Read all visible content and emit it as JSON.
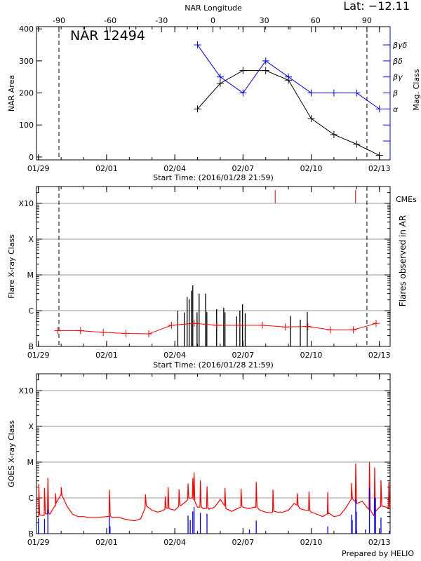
{
  "header": {
    "lat_label": "Lat: −12.11"
  },
  "footer": {
    "credit": "Prepared by HELIO"
  },
  "colors": {
    "axis": "#000000",
    "mag_class": "#0000ff",
    "flare_bg": "#ff0000",
    "cme": "#ff0000",
    "goes_long": "#ff0000",
    "goes_short": "#0000ff",
    "grid": "#999999"
  },
  "chart_data": [
    {
      "type": "line",
      "title": "NAR 12494",
      "xlabel": "Start Time: (2016/01/28 21:59)",
      "ylabel": "NAR Area",
      "xlim": [
        "2016-01-28T21:59",
        "2016-02-13T11:20"
      ],
      "xticks": [
        {
          "date": "2016-01-29T00:00",
          "label": "01/29"
        },
        {
          "date": "2016-02-01T00:00",
          "label": "02/01"
        },
        {
          "date": "2016-02-04T00:00",
          "label": "02/04"
        },
        {
          "date": "2016-02-07T00:00",
          "label": "02/07"
        },
        {
          "date": "2016-02-10T00:00",
          "label": "02/10"
        },
        {
          "date": "2016-02-13T00:00",
          "label": "02/13"
        }
      ],
      "ylim": [
        -9,
        407
      ],
      "yticks": [
        "0",
        "100",
        "200",
        "300",
        "400"
      ],
      "top_axis": {
        "label": "NAR Longitude",
        "ticks": [
          "-90",
          "-60",
          "-30",
          "0",
          "30",
          "60",
          "90"
        ]
      },
      "limb_crossings": {
        "east": {
          "date": "2016-01-29T21:40",
          "longitude": -90
        },
        "west": {
          "date": "2016-02-12T10:50",
          "longitude": 90
        }
      },
      "right_axis": {
        "label": "Mag. Class",
        "tick_levels": [
          50,
          100,
          150,
          200,
          250,
          300,
          350
        ],
        "classes": [
          {
            "level": 150,
            "label": "α"
          },
          {
            "level": 200,
            "label": "β"
          },
          {
            "level": 250,
            "label": "βγ"
          },
          {
            "level": 300,
            "label": "βδ"
          },
          {
            "level": 350,
            "label": "βγδ"
          }
        ]
      },
      "dates": [
        "2016-02-05T00:00",
        "2016-02-06T00:00",
        "2016-02-07T00:00",
        "2016-02-08T00:00",
        "2016-02-09T00:00",
        "2016-02-10T00:00",
        "2016-02-11T00:00",
        "2016-02-12T00:00",
        "2016-02-13T00:00"
      ],
      "series": [
        {
          "axis": "left",
          "values": [
            150,
            230,
            270,
            270,
            240,
            120,
            70,
            40,
            5
          ]
        },
        {
          "axis": "right",
          "values": [
            "βγδ",
            "βγ",
            "β",
            "βδ",
            "βγ",
            "β",
            "β",
            "β",
            "α"
          ]
        }
      ],
      "grid": false
    },
    {
      "type": "bar",
      "xlabel": "Start Time: (2016/01/28 21:59)",
      "ylabel": "Flare X-ray Class",
      "right_label": "Flares observed in AR",
      "cme_label": "CMEs",
      "y_scale": "log",
      "ylim": [
        1e-07,
        0.003
      ],
      "ylevels": [
        {
          "flux": 1e-07,
          "label": "B"
        },
        {
          "flux": 1e-06,
          "label": "C"
        },
        {
          "flux": 1e-05,
          "label": "M"
        },
        {
          "flux": 0.0001,
          "label": "X"
        },
        {
          "flux": 0.001,
          "label": "X10"
        }
      ],
      "grid": true,
      "background": {
        "dates": [
          "2016-01-29T20:30",
          "2016-01-30T20:30",
          "2016-01-31T20:30",
          "2016-02-01T20:30",
          "2016-02-02T20:30",
          "2016-02-03T20:30",
          "2016-02-04T20:30",
          "2016-02-05T20:30",
          "2016-02-06T20:30",
          "2016-02-07T20:30",
          "2016-02-08T20:30",
          "2016-02-09T20:30",
          "2016-02-10T20:30",
          "2016-02-11T20:30",
          "2016-02-12T20:30"
        ],
        "flux": [
          2.75e-07,
          2.75e-07,
          2.47e-07,
          2.3e-07,
          2.25e-07,
          3.9e-07,
          4.4e-07,
          3.9e-07,
          3.9e-07,
          3.9e-07,
          3.5e-07,
          3.6e-07,
          2.9e-07,
          2.9e-07,
          4.4e-07
        ]
      },
      "flares": [
        {
          "date": "2016-02-04T03:10",
          "class": "C1.0"
        },
        {
          "date": "2016-02-04T10:00",
          "class": "B8.9"
        },
        {
          "date": "2016-02-04T13:00",
          "class": "C2.4"
        },
        {
          "date": "2016-02-04T15:10",
          "class": "C2.1"
        },
        {
          "date": "2016-02-04T17:30",
          "class": "C3.6"
        },
        {
          "date": "2016-02-04T19:00",
          "class": "C5.1"
        },
        {
          "date": "2016-02-04T23:30",
          "class": "B9.0"
        },
        {
          "date": "2016-02-05T01:40",
          "class": "C3.0"
        },
        {
          "date": "2016-02-05T08:30",
          "class": "C3.0"
        },
        {
          "date": "2016-02-05T09:50",
          "class": "B9.2"
        },
        {
          "date": "2016-02-05T20:10",
          "class": "C1.1"
        },
        {
          "date": "2016-02-06T03:40",
          "class": "C1.2"
        },
        {
          "date": "2016-02-06T05:00",
          "class": "B9.0"
        },
        {
          "date": "2016-02-06T17:20",
          "class": "B6.9"
        },
        {
          "date": "2016-02-06T20:40",
          "class": "C1.0"
        },
        {
          "date": "2016-02-06T23:30",
          "class": "C1.5"
        },
        {
          "date": "2016-02-07T02:20",
          "class": "B8.4"
        },
        {
          "date": "2016-02-09T02:10",
          "class": "B7.1"
        },
        {
          "date": "2016-02-09T12:30",
          "class": "B5.6"
        },
        {
          "date": "2016-02-09T19:50",
          "class": "B9.2"
        }
      ],
      "cmes": [
        "2016-02-08T10:00",
        "2016-02-11T22:50"
      ]
    },
    {
      "type": "line",
      "ylabel": "GOES X-ray Class",
      "y_scale": "log",
      "ylim": [
        1e-07,
        0.003
      ],
      "grid": true,
      "long_channel": {
        "dates": [
          "2016-01-29T00:00",
          "2016-01-29T06:00",
          "2016-01-29T12:00",
          "2016-01-29T18:00",
          "2016-01-30T00:00",
          "2016-01-30T06:00",
          "2016-01-30T12:00",
          "2016-01-30T18:00",
          "2016-01-31T00:00",
          "2016-01-31T06:00",
          "2016-01-31T12:00",
          "2016-01-31T18:00",
          "2016-02-01T00:00",
          "2016-02-01T06:00",
          "2016-02-01T12:00",
          "2016-02-01T18:00",
          "2016-02-02T00:00",
          "2016-02-02T06:00",
          "2016-02-02T12:00",
          "2016-02-02T18:00",
          "2016-02-03T00:00",
          "2016-02-03T06:00",
          "2016-02-03T12:00",
          "2016-02-03T18:00",
          "2016-02-04T00:00",
          "2016-02-04T06:00",
          "2016-02-04T12:00",
          "2016-02-04T18:00",
          "2016-02-05T00:00",
          "2016-02-05T06:00",
          "2016-02-05T12:00",
          "2016-02-05T18:00",
          "2016-02-06T00:00",
          "2016-02-06T06:00",
          "2016-02-06T12:00",
          "2016-02-06T18:00",
          "2016-02-07T00:00",
          "2016-02-07T06:00",
          "2016-02-07T12:00",
          "2016-02-07T18:00",
          "2016-02-08T00:00",
          "2016-02-08T06:00",
          "2016-02-08T12:00",
          "2016-02-08T18:00",
          "2016-02-09T00:00",
          "2016-02-09T06:00",
          "2016-02-09T12:00",
          "2016-02-09T18:00",
          "2016-02-10T00:00",
          "2016-02-10T06:00",
          "2016-02-10T12:00",
          "2016-02-10T18:00",
          "2016-02-11T00:00",
          "2016-02-11T06:00",
          "2016-02-11T12:00",
          "2016-02-11T18:00",
          "2016-02-12T00:00",
          "2016-02-12T06:00",
          "2016-02-12T12:00",
          "2016-02-12T18:00",
          "2016-02-13T00:00",
          "2016-02-13T11:00"
        ],
        "flux": [
          3e-07,
          3.2e-07,
          3.5e-07,
          6e-07,
          1.2e-06,
          6e-07,
          3.5e-07,
          3e-07,
          3e-07,
          2.8e-07,
          2.8e-07,
          2.9e-07,
          3e-07,
          2.8e-07,
          2.9e-07,
          2.6e-07,
          2.4e-07,
          2.3e-07,
          2.6e-07,
          6e-07,
          4.5e-07,
          4e-07,
          4.5e-07,
          5e-07,
          4.5e-07,
          6e-07,
          8e-07,
          1e-06,
          5.5e-07,
          5e-07,
          4.8e-07,
          5.5e-07,
          9e-07,
          5e-07,
          4.2e-07,
          5e-07,
          5.5e-07,
          5e-07,
          5.5e-07,
          4.5e-07,
          4e-07,
          3.8e-07,
          4e-07,
          4e-07,
          4.5e-07,
          7e-07,
          5e-07,
          4.5e-07,
          4e-07,
          3.5e-07,
          3e-07,
          3.5e-07,
          3e-07,
          3.2e-07,
          5e-07,
          9e-07,
          7e-07,
          8e-07,
          5e-07,
          3.2e-07,
          5.5e-07,
          5e-07
        ],
        "peaks": [
          {
            "date": "2016-01-29T00:30",
            "flux": 2.5e-06
          },
          {
            "date": "2016-01-29T06:30",
            "flux": 1.9e-06
          },
          {
            "date": "2016-01-29T10:00",
            "flux": 3.6e-06
          },
          {
            "date": "2016-01-29T18:00",
            "flux": 1.35e-06
          },
          {
            "date": "2016-01-30T00:00",
            "flux": 2e-06
          },
          {
            "date": "2016-02-01T03:00",
            "flux": 1.7e-06
          },
          {
            "date": "2016-02-02T17:00",
            "flux": 1.25e-06
          },
          {
            "date": "2016-02-03T14:00",
            "flux": 1.1e-06
          },
          {
            "date": "2016-02-03T17:00",
            "flux": 2e-06
          },
          {
            "date": "2016-02-04T04:30",
            "flux": 1.75e-06
          },
          {
            "date": "2016-02-04T14:00",
            "flux": 2.5e-06
          },
          {
            "date": "2016-02-04T19:00",
            "flux": 3.6e-06
          },
          {
            "date": "2016-02-04T20:20",
            "flux": 5.2e-06
          },
          {
            "date": "2016-02-05T03:00",
            "flux": 3.1e-06
          },
          {
            "date": "2016-02-05T10:00",
            "flux": 2.1e-06
          },
          {
            "date": "2016-02-06T05:00",
            "flux": 1.9e-06
          },
          {
            "date": "2016-02-06T22:00",
            "flux": 1.8e-06
          },
          {
            "date": "2016-02-07T14:00",
            "flux": 2.8e-06
          },
          {
            "date": "2016-02-08T07:40",
            "flux": 1.7e-06
          },
          {
            "date": "2016-02-09T09:20",
            "flux": 1.35e-06
          },
          {
            "date": "2016-02-09T21:40",
            "flux": 1.5e-06
          },
          {
            "date": "2016-02-10T17:30",
            "flux": 1.45e-06
          },
          {
            "date": "2016-02-11T18:40",
            "flux": 2.6e-06
          },
          {
            "date": "2016-02-11T23:00",
            "flux": 9.1e-06
          },
          {
            "date": "2016-02-12T13:30",
            "flux": 1e-05
          },
          {
            "date": "2016-02-12T19:00",
            "flux": 7.1e-06
          },
          {
            "date": "2016-02-13T01:40",
            "flux": 3.1e-06
          },
          {
            "date": "2016-02-13T10:00",
            "flux": 2.8e-06
          }
        ]
      },
      "short_channel": {
        "spikes": [
          {
            "date": "2016-01-29T00:00",
            "flux": 2.7e-07
          },
          {
            "date": "2016-01-29T06:30",
            "flux": 2.6e-07
          },
          {
            "date": "2016-01-29T10:00",
            "flux": 4.7e-07
          },
          {
            "date": "2016-02-01T03:00",
            "flux": 3.1e-07
          },
          {
            "date": "2016-02-01T03:40",
            "flux": 1.6e-07
          },
          {
            "date": "2016-02-04T14:00",
            "flux": 3.2e-07
          },
          {
            "date": "2016-02-04T16:20",
            "flux": 2.4e-07
          },
          {
            "date": "2016-02-04T19:00",
            "flux": 4.2e-07
          },
          {
            "date": "2016-02-04T20:20",
            "flux": 5.6e-07
          },
          {
            "date": "2016-02-05T03:00",
            "flux": 3.8e-07
          },
          {
            "date": "2016-02-05T10:00",
            "flux": 3.6e-07
          },
          {
            "date": "2016-02-07T06:50",
            "flux": 1.3e-07
          },
          {
            "date": "2016-02-07T14:00",
            "flux": 2.3e-07
          },
          {
            "date": "2016-02-10T17:30",
            "flux": 1.6e-07
          },
          {
            "date": "2016-02-11T18:40",
            "flux": 3.4e-07
          },
          {
            "date": "2016-02-11T19:20",
            "flux": 2.4e-07
          },
          {
            "date": "2016-02-11T23:00",
            "flux": 9.2e-07
          },
          {
            "date": "2016-02-11T23:40",
            "flux": 4.1e-07
          },
          {
            "date": "2016-02-12T09:10",
            "flux": 1.3e-07
          },
          {
            "date": "2016-02-12T13:30",
            "flux": 1.9e-06
          },
          {
            "date": "2016-02-12T19:00",
            "flux": 1e-06
          },
          {
            "date": "2016-02-12T19:50",
            "flux": 1e-06
          },
          {
            "date": "2016-02-13T01:40",
            "flux": 2.8e-07
          },
          {
            "date": "2016-02-13T11:00",
            "flux": 1.2e-07
          }
        ]
      }
    }
  ]
}
